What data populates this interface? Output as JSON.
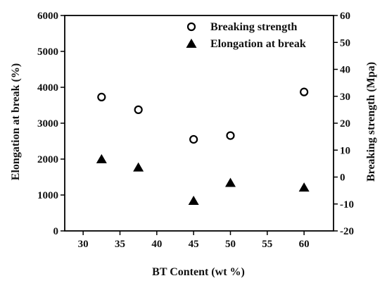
{
  "chart_data": {
    "type": "scatter",
    "xlabel": "BT Content (wt %)",
    "ylabel_left": "Elongation at break (%)",
    "ylabel_right": "Breaking strength (Mpa)",
    "xlim": [
      27.5,
      64
    ],
    "ylim_left": [
      0,
      6000
    ],
    "ylim_right": [
      -20,
      60
    ],
    "x_ticks": [
      30,
      35,
      40,
      45,
      50,
      55,
      60
    ],
    "y_left_ticks": [
      0,
      1000,
      2000,
      3000,
      4000,
      5000,
      6000
    ],
    "y_right_ticks": [
      -20,
      -10,
      0,
      10,
      20,
      30,
      40,
      50,
      60
    ],
    "legend_position": "top-right",
    "series": [
      {
        "name": "Breaking strength",
        "marker": "open-circle",
        "axis": "right",
        "color": "#000000",
        "x": [
          32.5,
          37.5,
          45,
          50,
          60
        ],
        "y": [
          29.7,
          25,
          14,
          15.4,
          31.6
        ]
      },
      {
        "name": "Elongation at break",
        "marker": "filled-triangle",
        "axis": "left",
        "color": "#000000",
        "x": [
          32.5,
          37.5,
          45,
          50,
          60
        ],
        "y": [
          2000,
          1770,
          840,
          1340,
          1210
        ]
      }
    ]
  }
}
